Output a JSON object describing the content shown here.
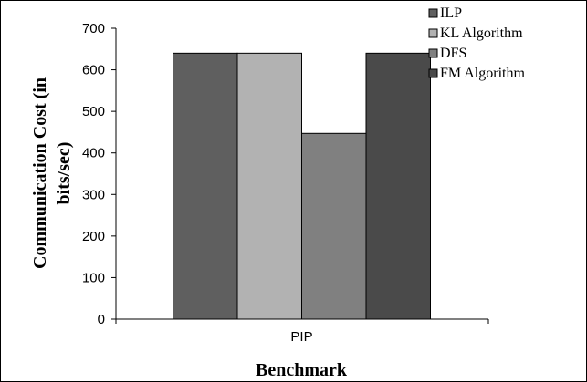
{
  "chart_data": {
    "type": "bar",
    "categories": [
      "PIP"
    ],
    "series": [
      {
        "name": "ILP",
        "values": [
          640
        ],
        "color": "#5f5f5f"
      },
      {
        "name": "KL Algorithm",
        "values": [
          640
        ],
        "color": "#b2b2b2"
      },
      {
        "name": "DFS",
        "values": [
          447
        ],
        "color": "#808080"
      },
      {
        "name": "FM Algorithm",
        "values": [
          640
        ],
        "color": "#4a4a4a"
      }
    ],
    "xlabel": "Benchmark",
    "ylabel": "Communication Cost (in bits/sec)",
    "ylabel_lines": [
      "Communication Cost (in",
      "bits/sec)"
    ],
    "ylim": [
      0,
      700
    ],
    "yticks": [
      0,
      100,
      200,
      300,
      400,
      500,
      600,
      700
    ],
    "grid": false,
    "legend_position": "top-right"
  }
}
